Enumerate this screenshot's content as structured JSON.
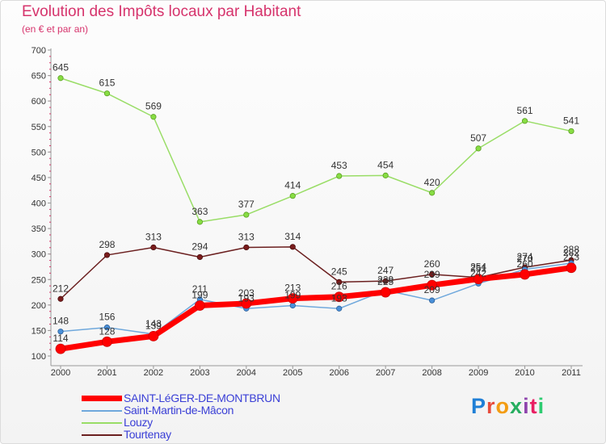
{
  "chart_data": {
    "type": "line",
    "title": "Evolution des Impôts locaux par Habitant",
    "subtitle": "(en € et par an)",
    "xlabel": "",
    "ylabel": "",
    "ylim": [
      100,
      700
    ],
    "yticks": [
      100,
      150,
      200,
      250,
      300,
      350,
      400,
      450,
      500,
      550,
      600,
      650,
      700
    ],
    "categories": [
      "2000",
      "2001",
      "2002",
      "2003",
      "2004",
      "2005",
      "2006",
      "2007",
      "2008",
      "2009",
      "2010",
      "2011"
    ],
    "grid": false,
    "legend_position": "bottom-left",
    "series": [
      {
        "name": "SAINT-LéGER-DE-MONTBRUN",
        "color": "#ff0000",
        "values": [
          114,
          128,
          139,
          199,
          203,
          213,
          216,
          225,
          239,
          251,
          260,
          273
        ]
      },
      {
        "name": "Saint-Martin-de-Mâcon",
        "color": "#6fa8dc",
        "values": [
          148,
          156,
          143,
          211,
          193,
          199,
          193,
          229,
          209,
          242,
          270,
          282
        ]
      },
      {
        "name": "Louzy",
        "color": "#99dd66",
        "values": [
          645,
          615,
          569,
          363,
          377,
          414,
          453,
          454,
          420,
          507,
          561,
          541
        ]
      },
      {
        "name": "Tourtenay",
        "color": "#6b1f1f",
        "values": [
          212,
          298,
          313,
          294,
          313,
          314,
          245,
          247,
          260,
          254,
          274,
          288
        ]
      }
    ]
  },
  "logo": {
    "letters": [
      "P",
      "r",
      "o",
      "x",
      "i",
      "t",
      "i"
    ]
  }
}
